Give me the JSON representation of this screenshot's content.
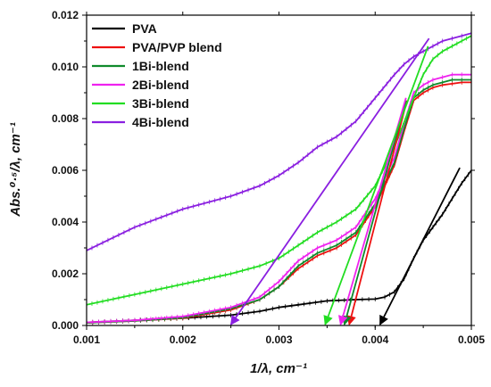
{
  "chart_data": {
    "type": "line",
    "xlabel": "1/λ, cm⁻¹",
    "ylabel": "Abs.⁰·⁵/λ, cm⁻¹",
    "xlim": [
      0.001,
      0.005
    ],
    "ylim": [
      0.0,
      0.012
    ],
    "x_ticks": [
      "0.001",
      "0.002",
      "0.003",
      "0.004",
      "0.005"
    ],
    "y_ticks": [
      "0.000",
      "0.002",
      "0.004",
      "0.006",
      "0.008",
      "0.010",
      "0.012"
    ],
    "grid": false,
    "legend_position": "top-left",
    "series": [
      {
        "name": "PVA",
        "color": "#000000",
        "x": [
          0.001,
          0.0015,
          0.002,
          0.0025,
          0.0028,
          0.003,
          0.0032,
          0.0035,
          0.0038,
          0.004,
          0.0041,
          0.0042,
          0.0043,
          0.0044,
          0.0045,
          0.0046,
          0.0047,
          0.0048,
          0.0049,
          0.005
        ],
        "y": [
          0.00012,
          0.0002,
          0.00028,
          0.0004,
          0.00055,
          0.0007,
          0.0008,
          0.00095,
          0.001,
          0.00102,
          0.0011,
          0.0013,
          0.0018,
          0.0026,
          0.0033,
          0.0038,
          0.0043,
          0.0049,
          0.0055,
          0.006
        ]
      },
      {
        "name": "PVA/PVP blend",
        "color": "#ee1111",
        "x": [
          0.001,
          0.0015,
          0.002,
          0.0025,
          0.0028,
          0.003,
          0.0032,
          0.0034,
          0.0036,
          0.0038,
          0.004,
          0.0042,
          0.0043,
          0.0044,
          0.0045,
          0.0046,
          0.0047,
          0.0048,
          0.0049,
          0.005
        ],
        "y": [
          0.0001,
          0.00018,
          0.00028,
          0.0006,
          0.001,
          0.0015,
          0.0022,
          0.0027,
          0.003,
          0.0035,
          0.0046,
          0.0062,
          0.0075,
          0.0087,
          0.009,
          0.0092,
          0.0093,
          0.00935,
          0.0094,
          0.0094
        ]
      },
      {
        "name": "1Bi-blend",
        "color": "#0f8a2c",
        "x": [
          0.001,
          0.0015,
          0.002,
          0.0025,
          0.0028,
          0.003,
          0.0032,
          0.0034,
          0.0036,
          0.0038,
          0.004,
          0.0042,
          0.0043,
          0.0044,
          0.0045,
          0.0046,
          0.0047,
          0.0048,
          0.0049,
          0.005
        ],
        "y": [
          0.0001,
          0.00018,
          0.0003,
          0.00065,
          0.001,
          0.0015,
          0.0023,
          0.0028,
          0.0031,
          0.0036,
          0.0047,
          0.0063,
          0.0076,
          0.0088,
          0.0091,
          0.0093,
          0.0094,
          0.0095,
          0.0095,
          0.0095
        ]
      },
      {
        "name": "2Bi-blend",
        "color": "#ee22ee",
        "x": [
          0.001,
          0.0015,
          0.002,
          0.0025,
          0.0028,
          0.003,
          0.0032,
          0.0034,
          0.0036,
          0.0038,
          0.004,
          0.0042,
          0.0043,
          0.0044,
          0.0045,
          0.0046,
          0.0047,
          0.0048,
          0.0049,
          0.005
        ],
        "y": [
          0.00012,
          0.0002,
          0.00035,
          0.0007,
          0.0011,
          0.0017,
          0.0025,
          0.003,
          0.0033,
          0.0038,
          0.0049,
          0.0065,
          0.0078,
          0.009,
          0.0093,
          0.0095,
          0.0096,
          0.0097,
          0.0097,
          0.0097
        ]
      },
      {
        "name": "3Bi-blend",
        "color": "#22dd22",
        "x": [
          0.001,
          0.0015,
          0.002,
          0.0025,
          0.0028,
          0.003,
          0.0032,
          0.0034,
          0.0036,
          0.0038,
          0.004,
          0.0042,
          0.0044,
          0.0045,
          0.0046,
          0.0047,
          0.0048,
          0.0049,
          0.005
        ],
        "y": [
          0.0008,
          0.0012,
          0.0016,
          0.002,
          0.0023,
          0.0026,
          0.0031,
          0.0036,
          0.004,
          0.0045,
          0.0054,
          0.0069,
          0.0088,
          0.0097,
          0.0103,
          0.0106,
          0.0108,
          0.011,
          0.0112
        ]
      },
      {
        "name": "4Bi-blend",
        "color": "#8a1fe0",
        "x": [
          0.001,
          0.0015,
          0.002,
          0.0025,
          0.0028,
          0.003,
          0.0032,
          0.0034,
          0.0036,
          0.0038,
          0.004,
          0.0042,
          0.0043,
          0.0044,
          0.0045,
          0.0046,
          0.0047,
          0.0048,
          0.0049,
          0.005
        ],
        "y": [
          0.0029,
          0.0038,
          0.0045,
          0.005,
          0.0054,
          0.0058,
          0.0063,
          0.0069,
          0.0073,
          0.0079,
          0.0088,
          0.0097,
          0.0101,
          0.0104,
          0.0106,
          0.0108,
          0.011,
          0.0111,
          0.0112,
          0.0113
        ]
      }
    ],
    "extrapolation_lines": [
      {
        "series": "PVA",
        "color": "#000000",
        "from": [
          0.00488,
          0.0061
        ],
        "to": [
          0.00405,
          0.0
        ]
      },
      {
        "series": "PVA/PVP blend",
        "color": "#ee1111",
        "from": [
          0.00433,
          0.0087
        ],
        "to": [
          0.00373,
          0.0
        ]
      },
      {
        "series": "1Bi-blend",
        "color": "#0f8a2c",
        "from": [
          0.00432,
          0.0087
        ],
        "to": [
          0.00368,
          0.0
        ]
      },
      {
        "series": "2Bi-blend",
        "color": "#ee22ee",
        "from": [
          0.00432,
          0.0088
        ],
        "to": [
          0.00364,
          0.0
        ]
      },
      {
        "series": "3Bi-blend",
        "color": "#22dd22",
        "from": [
          0.00455,
          0.0108
        ],
        "to": [
          0.00348,
          0.0
        ]
      },
      {
        "series": "4Bi-blend",
        "color": "#8a1fe0",
        "from": [
          0.00456,
          0.0111
        ],
        "to": [
          0.0025,
          0.0
        ]
      }
    ]
  }
}
